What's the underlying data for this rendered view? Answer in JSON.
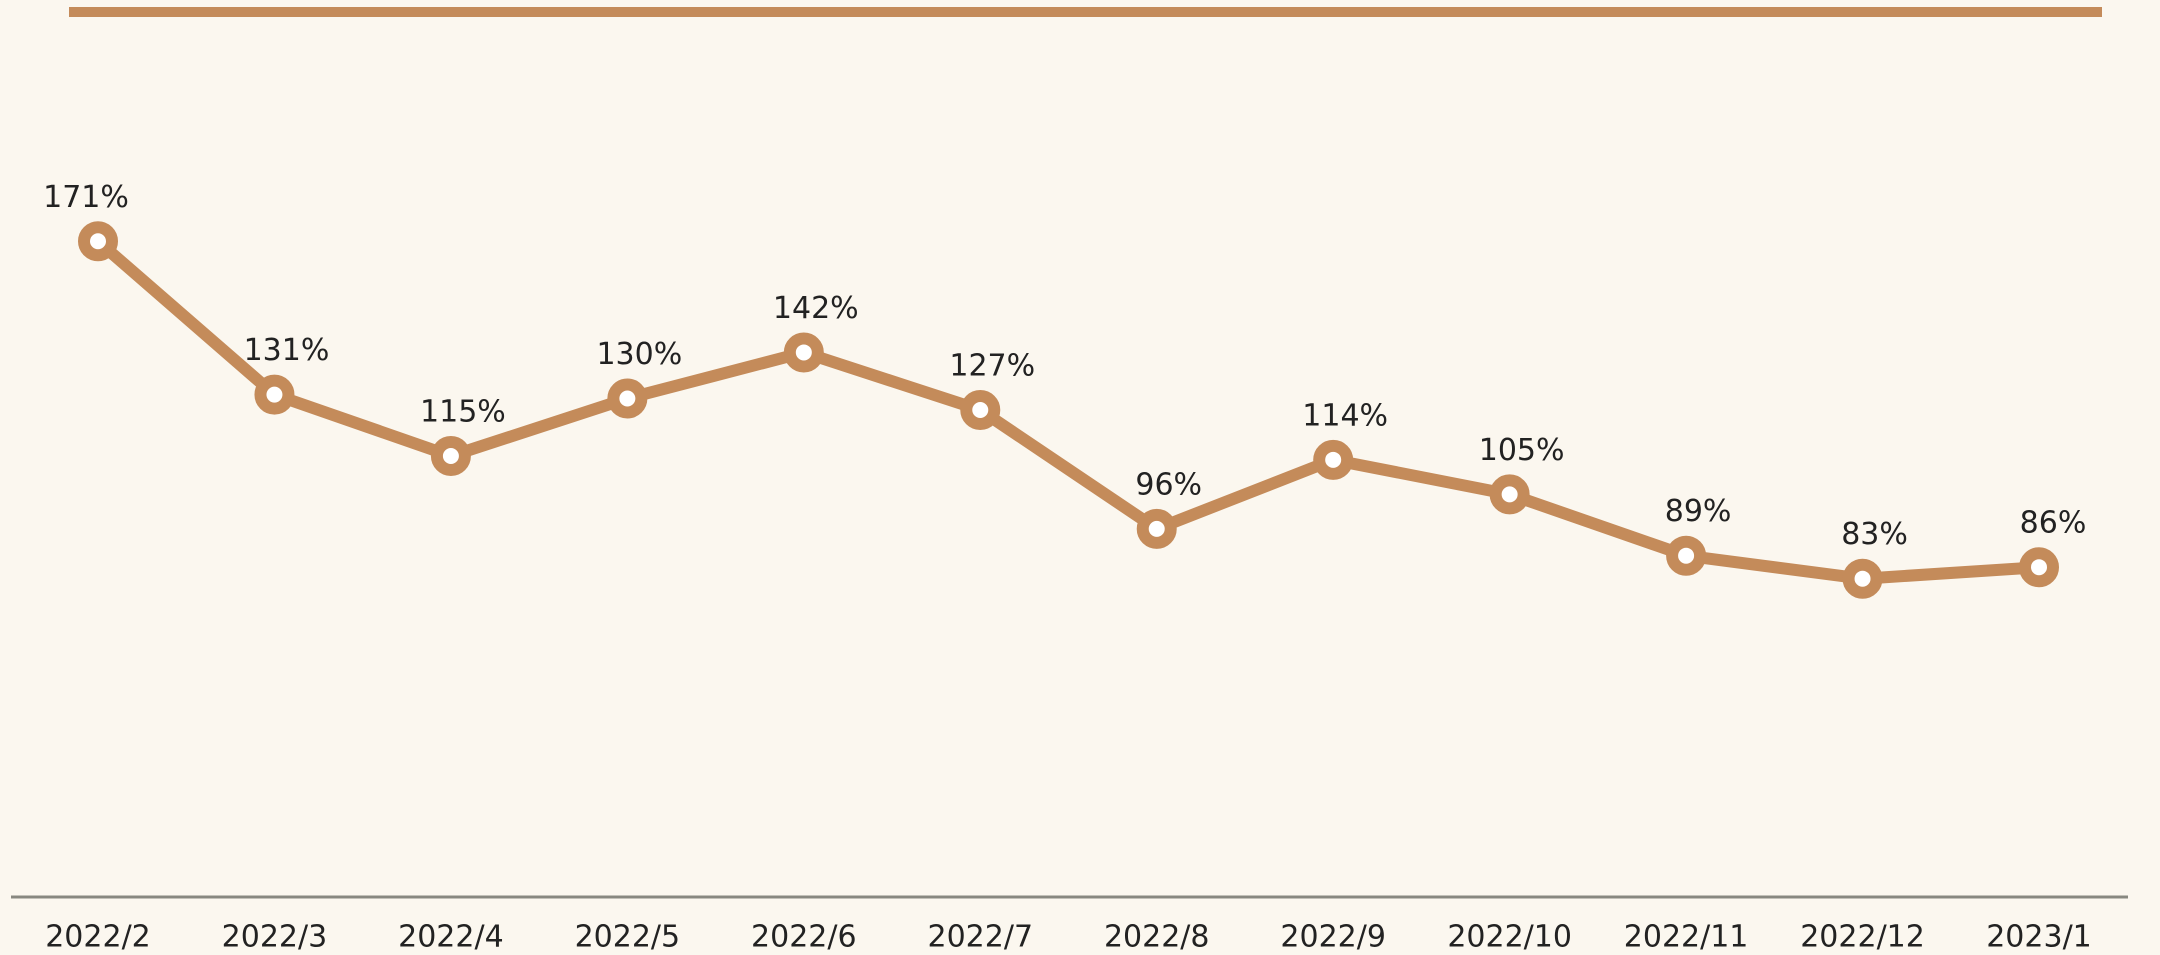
{
  "chart_data": {
    "type": "line",
    "categories": [
      "2022/2",
      "2022/3",
      "2022/4",
      "2022/5",
      "2022/6",
      "2022/7",
      "2022/8",
      "2022/9",
      "2022/10",
      "2022/11",
      "2022/12",
      "2023/1"
    ],
    "values": [
      171,
      131,
      115,
      130,
      142,
      127,
      96,
      114,
      105,
      89,
      83,
      86
    ],
    "value_labels": [
      "171%",
      "131%",
      "115%",
      "130%",
      "142%",
      "127%",
      "96%",
      "114%",
      "105%",
      "89%",
      "83%",
      "86%"
    ],
    "color": "#c48b5a",
    "ylim": [
      0,
      230
    ]
  }
}
